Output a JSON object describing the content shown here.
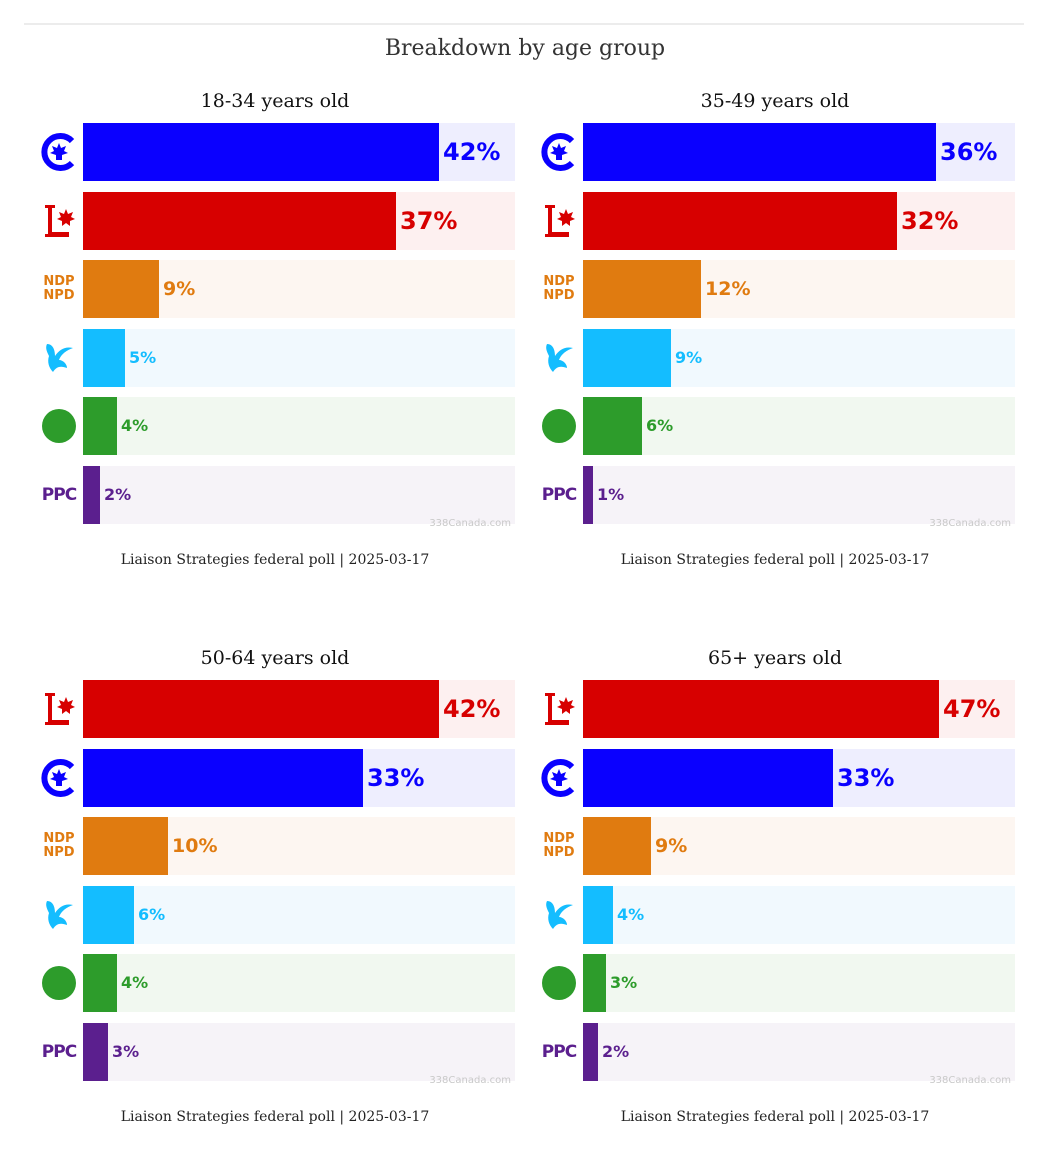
{
  "title": "Breakdown by age group",
  "parties": {
    "cpc": {
      "logo": "cpc-logo-icon",
      "color": "#0a00ff",
      "bg": "#eeeefe"
    },
    "lpc": {
      "logo": "lpc-logo-icon",
      "color": "#d70000",
      "bg": "#fdf0f0"
    },
    "ndp": {
      "logo": "ndp-logo-icon",
      "color": "#e07b10",
      "bg": "#fdf6f1",
      "logo_text": [
        "NDP",
        "NPD"
      ]
    },
    "bq": {
      "logo": "bq-logo-icon",
      "color": "#14bdff",
      "bg": "#f1f9fe"
    },
    "gpc": {
      "logo": "gpc-logo-icon",
      "color": "#2d9c2b",
      "bg": "#f1f8f0"
    },
    "ppc": {
      "logo": "ppc-logo-icon",
      "color": "#5b1f8e",
      "bg": "#f6f3f8",
      "logo_text": [
        "PPC"
      ]
    }
  },
  "chart_data": [
    {
      "type": "bar",
      "title": "18-34 years old",
      "source": "Liaison Strategies federal poll | 2025-03-17",
      "watermark": "338Canada.com",
      "categories": [
        "cpc",
        "lpc",
        "ndp",
        "bq",
        "gpc",
        "ppc"
      ],
      "values": [
        42,
        37,
        9,
        5,
        4,
        2
      ],
      "labels": [
        "42%",
        "37%",
        "9%",
        "5%",
        "4%",
        "2%"
      ],
      "xlim": [
        0,
        51
      ]
    },
    {
      "type": "bar",
      "title": "35-49 years old",
      "source": "Liaison Strategies federal poll | 2025-03-17",
      "watermark": "338Canada.com",
      "categories": [
        "cpc",
        "lpc",
        "ndp",
        "bq",
        "gpc",
        "ppc"
      ],
      "values": [
        36,
        32,
        12,
        9,
        6,
        1
      ],
      "labels": [
        "36%",
        "32%",
        "12%",
        "9%",
        "6%",
        "1%"
      ],
      "xlim": [
        0,
        44
      ]
    },
    {
      "type": "bar",
      "title": "50-64 years old",
      "source": "Liaison Strategies federal poll | 2025-03-17",
      "watermark": "338Canada.com",
      "categories": [
        "lpc",
        "cpc",
        "ndp",
        "bq",
        "gpc",
        "ppc"
      ],
      "values": [
        42,
        33,
        10,
        6,
        4,
        3
      ],
      "labels": [
        "42%",
        "33%",
        "10%",
        "6%",
        "4%",
        "3%"
      ],
      "xlim": [
        0,
        51
      ]
    },
    {
      "type": "bar",
      "title": "65+ years old",
      "source": "Liaison Strategies federal poll | 2025-03-17",
      "watermark": "338Canada.com",
      "categories": [
        "lpc",
        "cpc",
        "ndp",
        "bq",
        "gpc",
        "ppc"
      ],
      "values": [
        47,
        33,
        9,
        4,
        3,
        2
      ],
      "labels": [
        "47%",
        "33%",
        "9%",
        "4%",
        "3%",
        "2%"
      ],
      "xlim": [
        0,
        57
      ]
    }
  ]
}
